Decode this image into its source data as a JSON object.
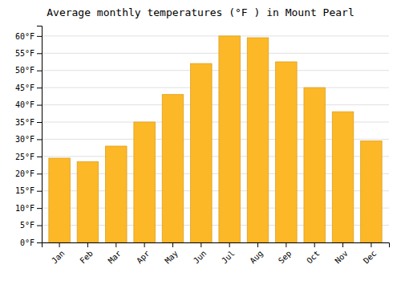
{
  "chart_data": {
    "type": "bar",
    "title": "Average monthly temperatures (°F ) in Mount Pearl",
    "categories": [
      "Jan",
      "Feb",
      "Mar",
      "Apr",
      "May",
      "Jun",
      "Jul",
      "Aug",
      "Sep",
      "Oct",
      "Nov",
      "Dec"
    ],
    "values": [
      24.5,
      23.5,
      28,
      35,
      43,
      52,
      60,
      59.5,
      52.5,
      45,
      38,
      29.5
    ],
    "color": "#FDB827",
    "ylim": [
      0,
      63
    ],
    "yticks": [
      {
        "value": 0,
        "label": "0°F"
      },
      {
        "value": 5,
        "label": "5°F"
      },
      {
        "value": 10,
        "label": "10°F"
      },
      {
        "value": 15,
        "label": "15°F"
      },
      {
        "value": 20,
        "label": "20°F"
      },
      {
        "value": 25,
        "label": "25°F"
      },
      {
        "value": 30,
        "label": "30°F"
      },
      {
        "value": 35,
        "label": "35°F"
      },
      {
        "value": 40,
        "label": "40°F"
      },
      {
        "value": 45,
        "label": "45°F"
      },
      {
        "value": 50,
        "label": "50°F"
      },
      {
        "value": 55,
        "label": "55°F"
      },
      {
        "value": 60,
        "label": "60°F"
      }
    ],
    "grid": true
  }
}
